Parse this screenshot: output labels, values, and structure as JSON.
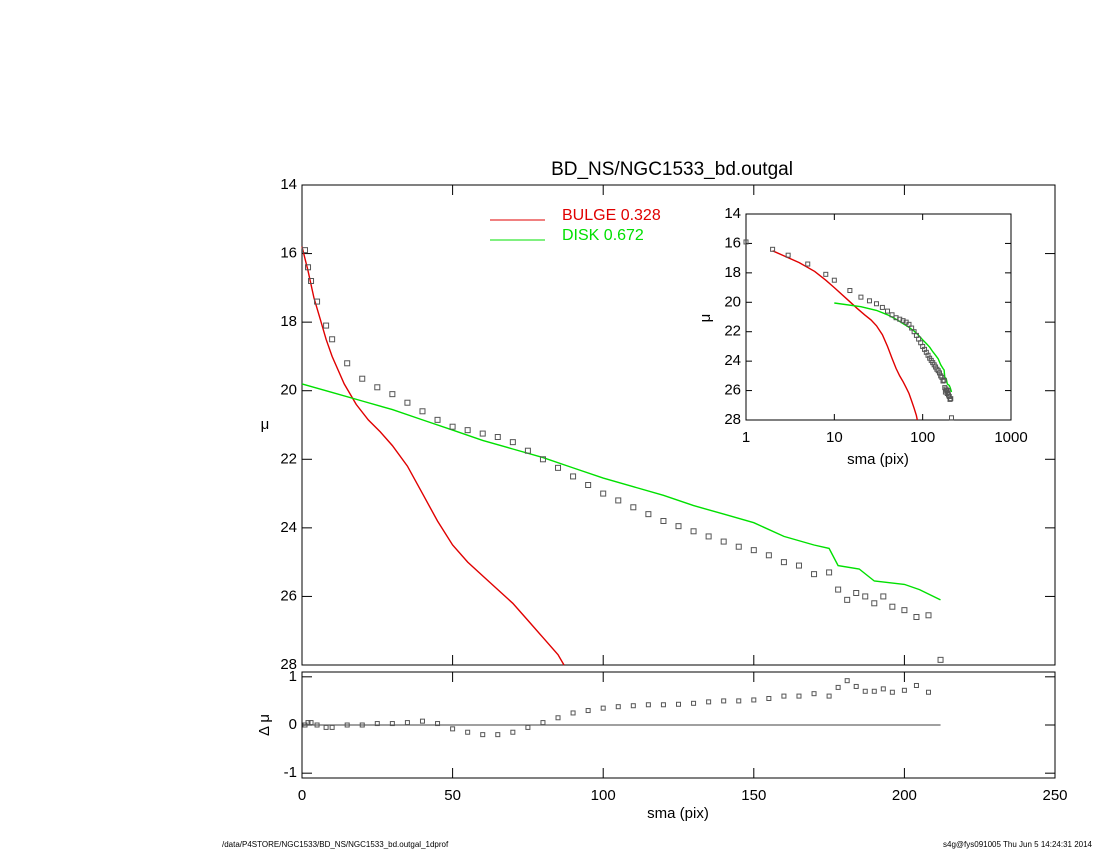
{
  "chart_data": [
    {
      "type": "profile",
      "title": "BD_NS/NGC1533_bd.outgal",
      "y_label": "μ",
      "xlim": [
        0,
        250
      ],
      "xticks": [
        0,
        50,
        100,
        150,
        200,
        250
      ],
      "ylim": [
        14,
        28
      ],
      "yticks": [
        14,
        16,
        18,
        20,
        22,
        24,
        26,
        28
      ],
      "y_inverted": true,
      "points": {
        "color": "#555555",
        "marker": "square",
        "x": [
          1,
          2,
          3,
          5,
          8,
          10,
          15,
          20,
          25,
          30,
          35,
          40,
          45,
          50,
          55,
          60,
          65,
          70,
          75,
          80,
          85,
          90,
          95,
          100,
          105,
          110,
          115,
          120,
          125,
          130,
          135,
          140,
          145,
          150,
          155,
          160,
          165,
          170,
          175,
          178,
          181,
          184,
          187,
          190,
          193,
          196,
          200,
          204,
          208,
          212
        ],
        "values": [
          15.9,
          16.4,
          16.8,
          17.4,
          18.1,
          18.5,
          19.2,
          19.65,
          19.9,
          20.1,
          20.35,
          20.6,
          20.85,
          21.05,
          21.15,
          21.25,
          21.35,
          21.5,
          21.75,
          22.0,
          22.25,
          22.5,
          22.75,
          23.0,
          23.2,
          23.4,
          23.6,
          23.8,
          23.95,
          24.1,
          24.25,
          24.4,
          24.55,
          24.65,
          24.8,
          25.0,
          25.1,
          25.35,
          25.3,
          25.8,
          26.1,
          25.9,
          26.0,
          26.2,
          26.0,
          26.3,
          26.4,
          26.6,
          26.55,
          27.85
        ]
      },
      "series": [
        {
          "name": "BULGE  0.328",
          "color": "#e00000",
          "x": [
            0,
            2,
            4,
            6,
            8,
            10,
            14,
            18,
            22,
            26,
            30,
            35,
            40,
            45,
            50,
            55,
            60,
            65,
            70,
            75,
            80,
            85,
            87
          ],
          "values": [
            15.8,
            16.5,
            17.3,
            17.9,
            18.5,
            19.0,
            19.8,
            20.4,
            20.85,
            21.2,
            21.6,
            22.2,
            23.0,
            23.8,
            24.5,
            25.0,
            25.4,
            25.8,
            26.2,
            26.7,
            27.2,
            27.7,
            28.0
          ]
        },
        {
          "name": "DISK  0.672",
          "color": "#00e000",
          "x": [
            0,
            10,
            20,
            30,
            40,
            50,
            60,
            70,
            80,
            90,
            100,
            110,
            120,
            130,
            140,
            150,
            160,
            170,
            175,
            178,
            185,
            190,
            195,
            200,
            205,
            212
          ],
          "values": [
            19.8,
            20.05,
            20.3,
            20.55,
            20.85,
            21.15,
            21.45,
            21.7,
            21.95,
            22.25,
            22.55,
            22.8,
            23.05,
            23.35,
            23.6,
            23.85,
            24.25,
            24.5,
            24.6,
            25.1,
            25.2,
            25.55,
            25.6,
            25.65,
            25.8,
            26.1
          ]
        }
      ]
    },
    {
      "type": "residual",
      "x_label": "sma (pix)",
      "y_label": "Δ μ",
      "xlim": [
        0,
        250
      ],
      "xticks": [
        0,
        50,
        100,
        150,
        200,
        250
      ],
      "ylim": [
        -1.1,
        1.1
      ],
      "yticks": [
        -1,
        0,
        1
      ],
      "zero_line_x": [
        0,
        212
      ],
      "values": [
        0.0,
        0.05,
        0.05,
        0.0,
        -0.05,
        -0.05,
        0.0,
        0.0,
        0.03,
        0.03,
        0.05,
        0.08,
        0.03,
        -0.08,
        -0.15,
        -0.2,
        -0.2,
        -0.15,
        -0.05,
        0.05,
        0.15,
        0.25,
        0.3,
        0.35,
        0.38,
        0.4,
        0.42,
        0.42,
        0.43,
        0.45,
        0.48,
        0.5,
        0.5,
        0.52,
        0.55,
        0.6,
        0.6,
        0.65,
        0.6,
        0.78,
        0.92,
        0.8,
        0.7,
        0.7,
        0.75,
        0.68,
        0.72,
        0.82,
        0.68,
        null
      ]
    },
    {
      "type": "inset",
      "x_label": "sma (pix)",
      "y_label": "μ",
      "xscale": "log",
      "xlim": [
        1,
        1000
      ],
      "xticks": [
        1,
        10,
        100,
        1000
      ],
      "ylim": [
        14,
        28
      ],
      "yticks": [
        14,
        16,
        18,
        20,
        22,
        24,
        26,
        28
      ],
      "y_inverted": true
    }
  ],
  "footer": {
    "left": "/data/P4STORE/NGC1533/BD_NS/NGC1533_bd.outgal_1dprof",
    "right": "s4g@fys091005  Thu Jun  5 14:24:31 2014"
  }
}
